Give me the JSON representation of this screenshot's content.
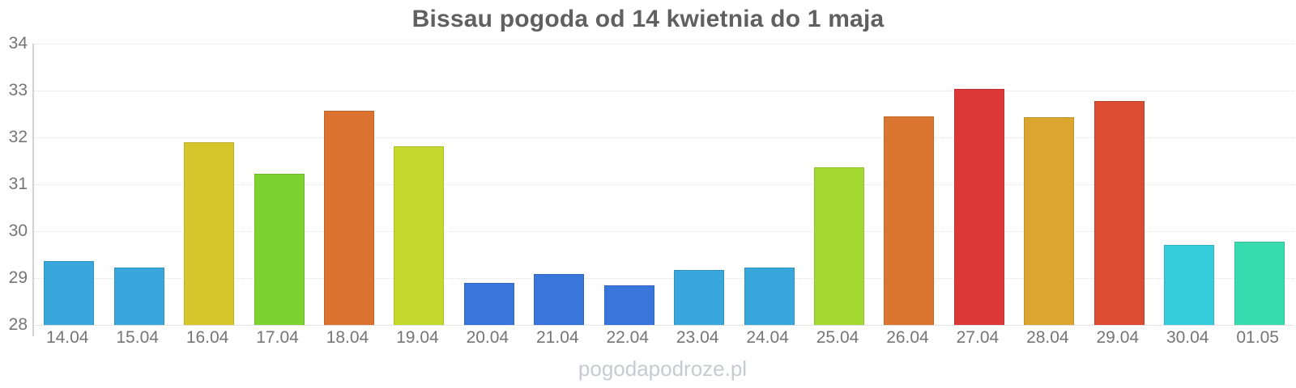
{
  "title": "Bissau pogoda od 14 kwietnia do 1 maja",
  "watermark": "pogodapodroze.pl",
  "chart_data": {
    "type": "bar",
    "title": "Bissau pogoda od 14 kwietnia do 1 maja",
    "categories": [
      "14.04",
      "15.04",
      "16.04",
      "17.04",
      "18.04",
      "19.04",
      "20.04",
      "21.04",
      "22.04",
      "23.04",
      "24.04",
      "25.04",
      "26.04",
      "27.04",
      "28.04",
      "29.04",
      "30.04",
      "01.05"
    ],
    "values": [
      29.37,
      29.22,
      31.89,
      31.22,
      32.57,
      31.81,
      28.9,
      29.08,
      28.84,
      29.18,
      29.23,
      31.36,
      32.45,
      33.04,
      32.43,
      32.77,
      29.7,
      29.78
    ],
    "bar_colors": [
      "#3aa7dc",
      "#3aa7dc",
      "#d6c62c",
      "#7dd230",
      "#db7230",
      "#c4d92e",
      "#3876db",
      "#3876db",
      "#3876db",
      "#38a7dc",
      "#38a7dc",
      "#a3d930",
      "#db7630",
      "#dc3838",
      "#dba62f",
      "#dc4c32",
      "#35cddb",
      "#38dbb0"
    ],
    "xlabel": "",
    "ylabel": "",
    "ylim": [
      28,
      34
    ],
    "yticks": [
      28,
      29,
      30,
      31,
      32,
      33,
      34
    ],
    "grid": "horizontal-dotted",
    "legend": "none",
    "axis_color": "#d3d3d3",
    "tick_label_color": "#757575"
  }
}
